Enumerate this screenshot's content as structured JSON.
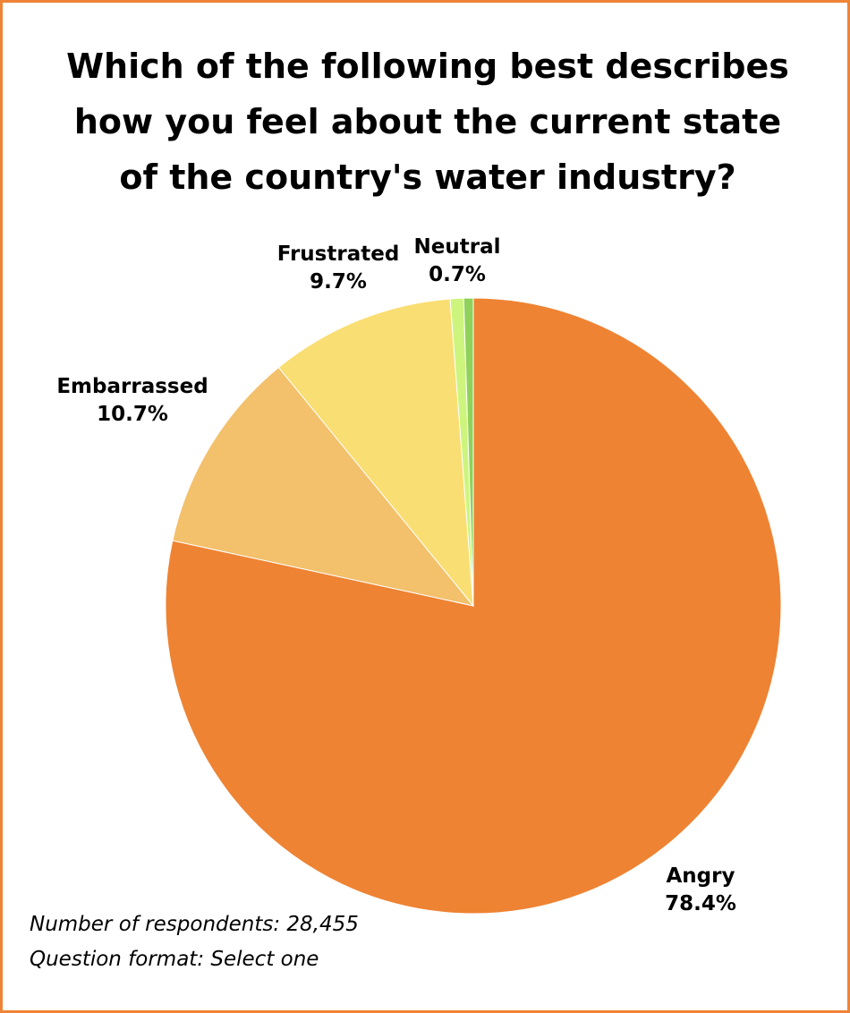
{
  "chart_data": {
    "type": "pie",
    "title_lines": [
      "Which of the following best describes",
      "how you feel about the current state",
      "of the country's water industry?"
    ],
    "slices": [
      {
        "label": "Angry",
        "value": 78.4,
        "display": "78.4%",
        "color": "#ee8333"
      },
      {
        "label": "Embarrassed",
        "value": 10.7,
        "display": "10.7%",
        "color": "#f3c06b"
      },
      {
        "label": "Frustrated",
        "value": 9.7,
        "display": "9.7%",
        "color": "#f9de73"
      },
      {
        "label": "Neutral",
        "value": 0.7,
        "display": "0.7%",
        "color": "#cdf57e"
      },
      {
        "value": 0.5,
        "color": "#8fd15a"
      }
    ]
  },
  "notes": {
    "respondents": "Number of respondents: 28,455",
    "format": "Question format: Select one"
  },
  "colors": {
    "border": "#ee8436"
  }
}
